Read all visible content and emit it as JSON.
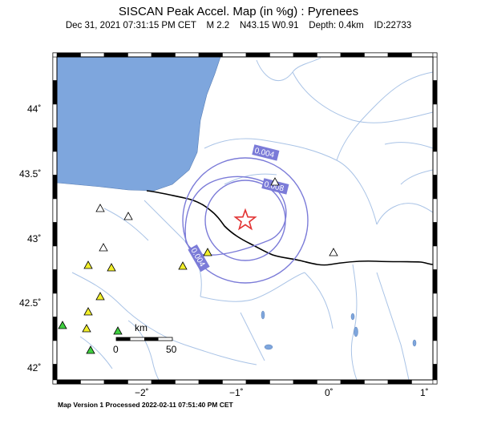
{
  "title": "SISCAN Peak Accel. Map (in %g) : Pyrenees",
  "subtitle": "Dec 31, 2021 07:31:15 PM CET    M 2.2    N43.15 W0.91    Depth: 0.4km    ID:22733",
  "footer": "Map Version 1 Processed 2022-02-11 07:51:40 PM CET",
  "lat_ticks": [
    "44˚",
    "43.5˚",
    "43˚",
    "42.5˚",
    "42˚"
  ],
  "lon_ticks": [
    "−2˚",
    "−1˚",
    "0˚",
    "1˚"
  ],
  "contours": [
    {
      "label": "0.004",
      "color": "#7b7bd8"
    },
    {
      "label": "0.008",
      "color": "#7b7bd8"
    },
    {
      "label": "0.004",
      "color": "#7b7bd8"
    }
  ],
  "scale": {
    "unit": "km",
    "start": "0",
    "end": "50"
  },
  "colors": {
    "sea": "#7ea6dd",
    "rivers": "#a9c3e6",
    "border": "#000000",
    "epicenter": "#e23333",
    "station_yellow": "#f2ef2a",
    "station_green": "#3fcf3f",
    "station_white": "#ffffff"
  },
  "epicenter": {
    "lat": 43.15,
    "lon": -0.91,
    "icon": "star-icon"
  }
}
